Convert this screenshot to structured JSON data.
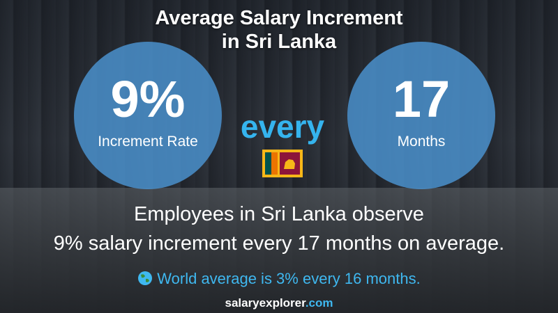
{
  "header": {
    "title_lines": [
      "Average Salary Increment",
      "in Sri Lanka"
    ]
  },
  "left_circle": {
    "value": "9%",
    "label": "Increment Rate"
  },
  "connector": "every",
  "right_circle": {
    "value": "17",
    "label": "Months"
  },
  "summary_lines": [
    "Employees in Sri Lanka observe",
    "9% salary increment every 17 months on average."
  ],
  "world_note": "World average is 3% every 16 months.",
  "footer": {
    "brand_parts": [
      "salary",
      "explorer",
      ".com"
    ]
  }
}
